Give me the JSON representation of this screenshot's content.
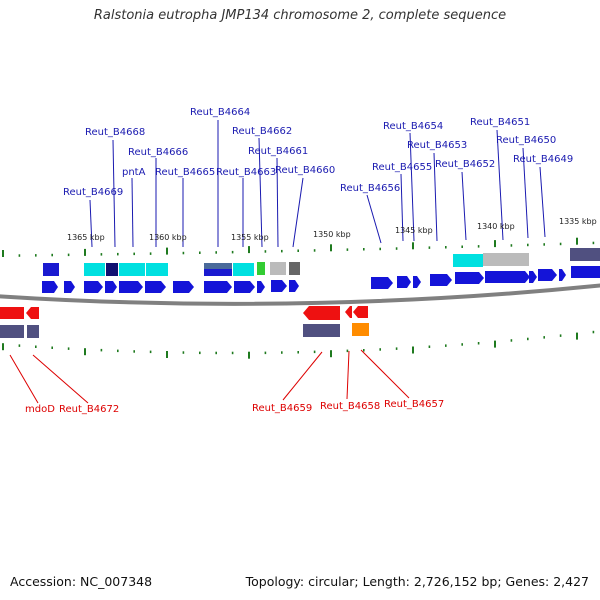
{
  "title": "Ralstonia eutropha JMP134 chromosome 2, complete sequence",
  "footer": {
    "accession": "Accession: NC_007348",
    "topology": "Topology: circular; Length: 2,726,152 bp; Genes: 2,427"
  },
  "colors": {
    "plus_label": "#1a1ab0",
    "minus_label": "#dd0000",
    "tick": "#1f7a1f",
    "backbone": "#808080"
  },
  "scale_labels": [
    "1365 kbp",
    "1360 kbp",
    "1355 kbp",
    "1350 kbp",
    "1345 kbp",
    "1340 kbp",
    "1335 kbp"
  ],
  "plus_strand_labels": [
    "Reut_B4669",
    "Reut_B4668",
    "pntA",
    "Reut_B4666",
    "Reut_B4665",
    "Reut_B4664",
    "Reut_B4663",
    "Reut_B4662",
    "Reut_B4661",
    "Reut_B4660",
    "Reut_B4656",
    "Reut_B4655",
    "Reut_B4654",
    "Reut_B4653",
    "Reut_B4652",
    "Reut_B4651",
    "Reut_B4650",
    "Reut_B4649"
  ],
  "minus_strand_labels": [
    "mdoD",
    "Reut_B4672",
    "Reut_B4659",
    "Reut_B4658",
    "Reut_B4657"
  ]
}
